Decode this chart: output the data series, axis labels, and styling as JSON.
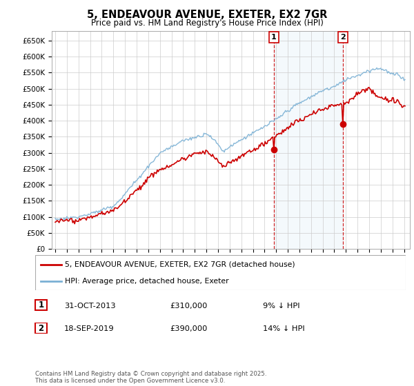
{
  "title": "5, ENDEAVOUR AVENUE, EXETER, EX2 7GR",
  "subtitle": "Price paid vs. HM Land Registry's House Price Index (HPI)",
  "ylabel_ticks": [
    "£0",
    "£50K",
    "£100K",
    "£150K",
    "£200K",
    "£250K",
    "£300K",
    "£350K",
    "£400K",
    "£450K",
    "£500K",
    "£550K",
    "£600K",
    "£650K"
  ],
  "ytick_values": [
    0,
    50000,
    100000,
    150000,
    200000,
    250000,
    300000,
    350000,
    400000,
    450000,
    500000,
    550000,
    600000,
    650000
  ],
  "ylim": [
    0,
    680000
  ],
  "hpi_color": "#7ab0d4",
  "price_color": "#cc0000",
  "vline_color": "#cc0000",
  "span_color": "#d6e8f7",
  "marker1_year": 2013.83,
  "marker1_price": 310000,
  "marker2_year": 2019.72,
  "marker2_price": 390000,
  "legend_label1": "5, ENDEAVOUR AVENUE, EXETER, EX2 7GR (detached house)",
  "legend_label2": "HPI: Average price, detached house, Exeter",
  "table_row1": [
    "1",
    "31-OCT-2013",
    "£310,000",
    "9% ↓ HPI"
  ],
  "table_row2": [
    "2",
    "18-SEP-2019",
    "£390,000",
    "14% ↓ HPI"
  ],
  "footer": "Contains HM Land Registry data © Crown copyright and database right 2025.\nThis data is licensed under the Open Government Licence v3.0.",
  "plot_bg_color": "#ffffff",
  "grid_color": "#cccccc",
  "box_color": "#cc0000"
}
